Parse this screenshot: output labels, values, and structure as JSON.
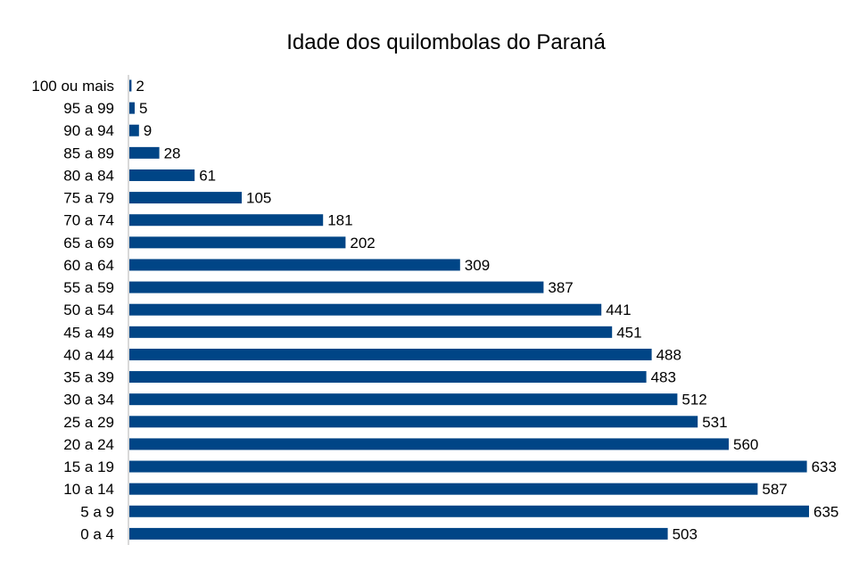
{
  "chart_data": {
    "type": "bar",
    "orientation": "horizontal",
    "title": "Idade dos quilombolas do Paraná",
    "xlabel": "",
    "ylabel": "",
    "categories": [
      "0 a 4",
      "5 a 9",
      "10 a 14",
      "15 a 19",
      "20 a 24",
      "25 a 29",
      "30 a 34",
      "35 a 39",
      "40 a 44",
      "45 a 49",
      "50 a 54",
      "55 a 59",
      "60 a 64",
      "65 a 69",
      "70 a 74",
      "75 a 79",
      "80 a 84",
      "85 a 89",
      "90 a 94",
      "95 a 99",
      "100 ou mais"
    ],
    "values": [
      503,
      635,
      587,
      633,
      560,
      531,
      512,
      483,
      488,
      451,
      441,
      387,
      309,
      202,
      181,
      105,
      61,
      28,
      9,
      5,
      2
    ],
    "xlim": [
      0,
      635
    ],
    "grid": false,
    "legend": "none",
    "bar_color": "#004586"
  }
}
